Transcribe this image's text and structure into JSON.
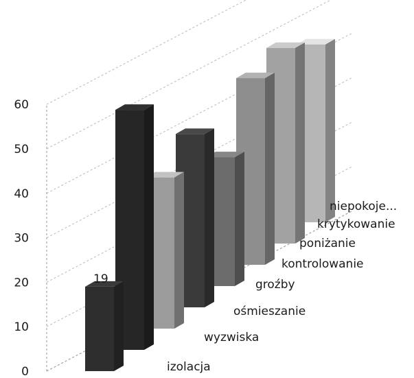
{
  "chart_data": {
    "type": "bar",
    "style": "3d-column",
    "categories": [
      "izolacja",
      "wyzwiska",
      "ośmieszanie",
      "groźby",
      "kontrolowanie",
      "poniżanie",
      "krytykowanie",
      "niepokoje..."
    ],
    "values": [
      19,
      54,
      34,
      39,
      29,
      42,
      44,
      40
    ],
    "data_labels": {
      "0": "19"
    },
    "ylim": [
      0,
      60
    ],
    "yticks": [
      0,
      10,
      20,
      30,
      40,
      50,
      60
    ],
    "title": "",
    "xlabel": "",
    "ylabel": "",
    "grid": true,
    "legend": "none",
    "colors": [
      "#2e2e2e",
      "#262626",
      "#9b9b9b",
      "#3a3a3a",
      "#6c6c6c",
      "#8e8e8e",
      "#a2a2a2",
      "#b6b6b6"
    ]
  }
}
